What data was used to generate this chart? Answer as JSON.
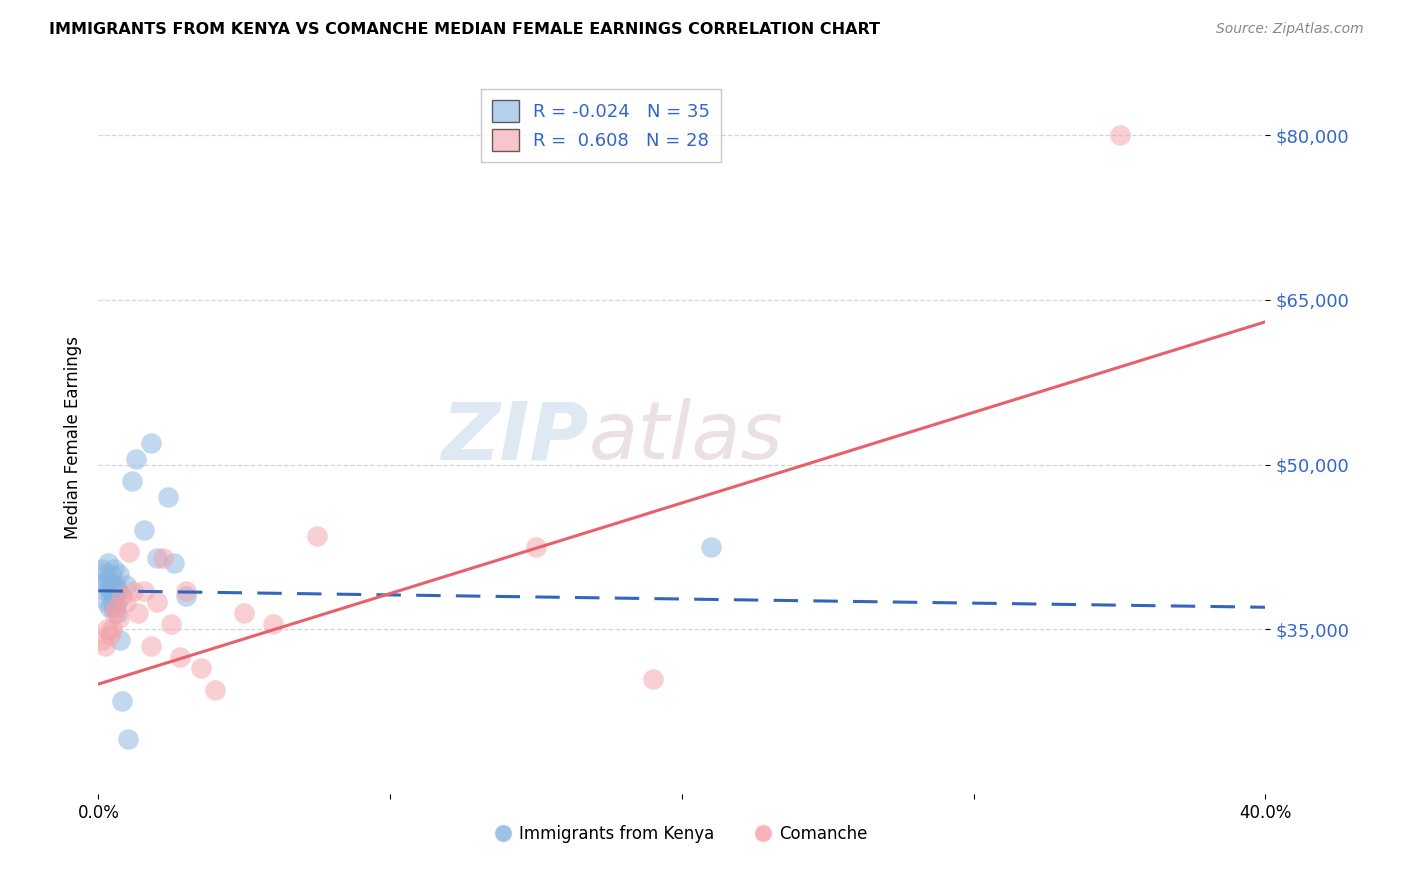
{
  "title": "IMMIGRANTS FROM KENYA VS COMANCHE MEDIAN FEMALE EARNINGS CORRELATION CHART",
  "source": "Source: ZipAtlas.com",
  "ylabel": "Median Female Earnings",
  "xlim": [
    0.0,
    0.4
  ],
  "ylim": [
    20000,
    85000
  ],
  "yticks": [
    35000,
    50000,
    65000,
    80000
  ],
  "xticks": [
    0.0,
    0.1,
    0.2,
    0.3,
    0.4
  ],
  "xtick_labels": [
    "0.0%",
    "",
    "",
    "",
    "40.0%"
  ],
  "ytick_labels": [
    "$35,000",
    "$50,000",
    "$65,000",
    "$80,000"
  ],
  "legend1_r": "-0.024",
  "legend1_n": "35",
  "legend2_r": " 0.608",
  "legend2_n": "28",
  "color_kenya": "#85B3E0",
  "color_comanche": "#F4A0A8",
  "color_line_kenya": "#3366BB",
  "color_line_comanche": "#E8606A",
  "watermark_zip": "ZIP",
  "watermark_atlas": "atlas",
  "kenya_x": [
    0.0012,
    0.0018,
    0.0022,
    0.0025,
    0.0028,
    0.003,
    0.0032,
    0.0035,
    0.0038,
    0.004,
    0.0042,
    0.0045,
    0.0048,
    0.005,
    0.0052,
    0.0055,
    0.0058,
    0.006,
    0.0062,
    0.0065,
    0.0068,
    0.007,
    0.0075,
    0.008,
    0.0095,
    0.0115,
    0.013,
    0.0155,
    0.018,
    0.02,
    0.024,
    0.026,
    0.03,
    0.21,
    0.01
  ],
  "kenya_y": [
    40500,
    39000,
    40000,
    38500,
    37500,
    39500,
    41000,
    37000,
    38500,
    39000,
    40000,
    37500,
    38500,
    39000,
    37000,
    40500,
    38000,
    39000,
    36500,
    37500,
    38500,
    40000,
    34000,
    28500,
    39000,
    48500,
    50500,
    44000,
    52000,
    41500,
    47000,
    41000,
    38000,
    42500,
    25000
  ],
  "comanche_x": [
    0.0012,
    0.0022,
    0.003,
    0.004,
    0.0048,
    0.0052,
    0.006,
    0.007,
    0.008,
    0.0095,
    0.0105,
    0.012,
    0.0135,
    0.0155,
    0.018,
    0.02,
    0.022,
    0.025,
    0.028,
    0.03,
    0.035,
    0.04,
    0.05,
    0.06,
    0.075,
    0.15,
    0.19,
    0.35
  ],
  "comanche_y": [
    34000,
    33500,
    35000,
    34500,
    35000,
    36500,
    37000,
    36000,
    38000,
    37500,
    42000,
    38500,
    36500,
    38500,
    33500,
    37500,
    41500,
    35500,
    32500,
    38500,
    31500,
    29500,
    36500,
    35500,
    43500,
    42500,
    30500,
    80000
  ],
  "kenya_line_x": [
    0.0,
    0.4
  ],
  "kenya_line_y": [
    38500,
    37000
  ],
  "comanche_line_x": [
    0.0,
    0.4
  ],
  "comanche_line_y": [
    30000,
    63000
  ]
}
